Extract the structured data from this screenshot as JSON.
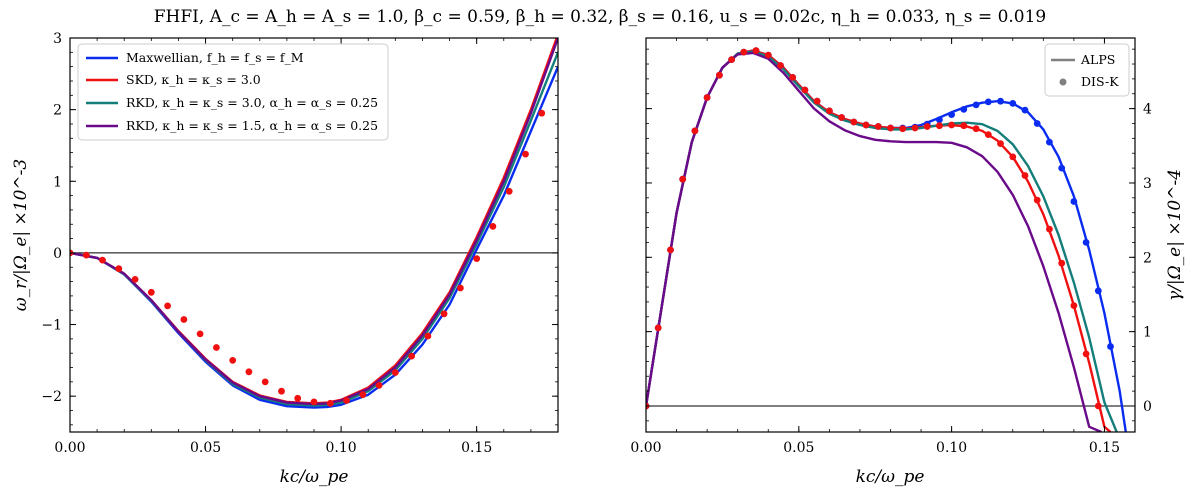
{
  "suptitle": "FHFI, A_c = A_h = A_s = 1.0, β_c = 0.59, β_h = 0.32, β_s = 0.16, u_s = 0.02c, η_h = 0.033, η_s = 0.019",
  "colors": {
    "maxwellian": "#0a2cf0",
    "skd": "#f01010",
    "rkd30": "#137e7a",
    "rkd15": "#6a0a8a"
  },
  "chart_data": [
    {
      "type": "line",
      "xlabel": "kc/ω_pe",
      "ylabel": "ω_r/|Ω_e| ×10^-3",
      "xlim": [
        0.0,
        0.18
      ],
      "ylim": [
        -2.5,
        3.0
      ],
      "x_ticks": [
        "0.00",
        "0.05",
        "0.10",
        "0.15"
      ],
      "y_ticks": [
        "−2",
        "−1",
        "0",
        "1",
        "2",
        "3"
      ],
      "zero_line": true,
      "legend_position": "top-left",
      "series": [
        {
          "name": "Maxwellian, f_h = f_s = f_M",
          "color_key": "maxwellian",
          "x": [
            0.0,
            0.01,
            0.02,
            0.03,
            0.04,
            0.05,
            0.06,
            0.07,
            0.08,
            0.09,
            0.095,
            0.1,
            0.11,
            0.12,
            0.13,
            0.14,
            0.15,
            0.16,
            0.17,
            0.18
          ],
          "y": [
            0.0,
            -0.07,
            -0.3,
            -0.68,
            -1.12,
            -1.52,
            -1.85,
            -2.05,
            -2.14,
            -2.16,
            -2.15,
            -2.12,
            -1.98,
            -1.7,
            -1.28,
            -0.72,
            0.05,
            0.8,
            1.7,
            2.6
          ]
        },
        {
          "name": "SKD, κ_h = κ_s = 3.0",
          "color_key": "skd",
          "x": [
            0.0,
            0.01,
            0.02,
            0.03,
            0.04,
            0.05,
            0.06,
            0.07,
            0.08,
            0.09,
            0.095,
            0.1,
            0.11,
            0.12,
            0.13,
            0.14,
            0.15,
            0.16,
            0.17,
            0.18
          ],
          "y": [
            0.0,
            -0.07,
            -0.29,
            -0.66,
            -1.09,
            -1.48,
            -1.8,
            -1.99,
            -2.08,
            -2.1,
            -2.09,
            -2.05,
            -1.88,
            -1.57,
            -1.12,
            -0.55,
            0.22,
            1.05,
            2.0,
            3.05
          ]
        },
        {
          "name": "RKD, κ_h = κ_s = 3.0, α_h = α_s = 0.25",
          "color_key": "rkd30",
          "x": [
            0.0,
            0.01,
            0.02,
            0.03,
            0.04,
            0.05,
            0.06,
            0.07,
            0.08,
            0.09,
            0.095,
            0.1,
            0.11,
            0.12,
            0.13,
            0.14,
            0.15,
            0.16,
            0.17,
            0.18
          ],
          "y": [
            0.0,
            -0.07,
            -0.3,
            -0.67,
            -1.1,
            -1.5,
            -1.83,
            -2.02,
            -2.11,
            -2.13,
            -2.12,
            -2.09,
            -1.93,
            -1.64,
            -1.2,
            -0.63,
            0.13,
            0.92,
            1.85,
            2.8
          ]
        },
        {
          "name": "RKD, κ_h = κ_s = 1.5, α_h = α_s = 0.25",
          "color_key": "rkd15",
          "x": [
            0.0,
            0.01,
            0.02,
            0.03,
            0.04,
            0.05,
            0.06,
            0.07,
            0.08,
            0.09,
            0.095,
            0.1,
            0.11,
            0.12,
            0.13,
            0.14,
            0.15,
            0.16,
            0.17,
            0.18
          ],
          "y": [
            0.0,
            -0.07,
            -0.29,
            -0.66,
            -1.1,
            -1.49,
            -1.81,
            -2.0,
            -2.09,
            -2.11,
            -2.1,
            -2.06,
            -1.9,
            -1.6,
            -1.15,
            -0.58,
            0.18,
            1.0,
            1.95,
            3.0
          ]
        }
      ],
      "markers": {
        "color_key": "skd",
        "x": [
          0.0,
          0.006,
          0.012,
          0.018,
          0.024,
          0.03,
          0.036,
          0.042,
          0.048,
          0.054,
          0.06,
          0.066,
          0.072,
          0.078,
          0.084,
          0.09,
          0.096,
          0.102,
          0.108,
          0.114,
          0.12,
          0.126,
          0.132,
          0.138,
          0.144,
          0.15,
          0.156,
          0.162,
          0.168,
          0.174
        ],
        "y": [
          0.0,
          -0.03,
          -0.1,
          -0.22,
          -0.37,
          -0.55,
          -0.74,
          -0.93,
          -1.13,
          -1.32,
          -1.5,
          -1.66,
          -1.8,
          -1.93,
          -2.03,
          -2.08,
          -2.1,
          -2.06,
          -1.98,
          -1.85,
          -1.67,
          -1.44,
          -1.16,
          -0.85,
          -0.49,
          -0.08,
          0.37,
          0.86,
          1.38,
          1.95
        ]
      }
    },
    {
      "type": "line",
      "xlabel": "kc/ω_pe",
      "ylabel": "γ/|Ω_e| ×10^-4",
      "xlim": [
        0.0,
        0.16
      ],
      "ylim": [
        -0.35,
        4.95
      ],
      "x_ticks": [
        "0.00",
        "0.05",
        "0.10",
        "0.15"
      ],
      "y_ticks": [
        "0",
        "1",
        "2",
        "3",
        "4"
      ],
      "zero_line": true,
      "legend_position": "top-right",
      "legend": [
        "ALPS",
        "DIS-K"
      ],
      "series": [
        {
          "name": "Maxwellian, f_h = f_s = f_M",
          "color_key": "maxwellian",
          "x": [
            0.0,
            0.005,
            0.01,
            0.015,
            0.02,
            0.025,
            0.03,
            0.035,
            0.04,
            0.045,
            0.05,
            0.055,
            0.06,
            0.065,
            0.07,
            0.075,
            0.08,
            0.085,
            0.09,
            0.095,
            0.1,
            0.105,
            0.11,
            0.115,
            0.12,
            0.125,
            0.13,
            0.135,
            0.14,
            0.145,
            0.15,
            0.155,
            0.157
          ],
          "y": [
            0.0,
            1.3,
            2.6,
            3.55,
            4.15,
            4.55,
            4.74,
            4.78,
            4.72,
            4.55,
            4.32,
            4.1,
            3.95,
            3.86,
            3.8,
            3.76,
            3.74,
            3.74,
            3.78,
            3.86,
            3.95,
            4.03,
            4.08,
            4.1,
            4.07,
            3.95,
            3.72,
            3.35,
            2.82,
            2.1,
            1.25,
            0.2,
            -0.35
          ]
        },
        {
          "name": "SKD, κ_h = κ_s = 3.0",
          "color_key": "skd",
          "x": [
            0.0,
            0.005,
            0.01,
            0.015,
            0.02,
            0.025,
            0.03,
            0.035,
            0.04,
            0.045,
            0.05,
            0.055,
            0.06,
            0.065,
            0.07,
            0.075,
            0.08,
            0.085,
            0.09,
            0.095,
            0.1,
            0.105,
            0.11,
            0.115,
            0.12,
            0.125,
            0.13,
            0.135,
            0.14,
            0.145,
            0.15,
            0.152
          ],
          "y": [
            0.0,
            1.3,
            2.6,
            3.55,
            4.15,
            4.55,
            4.74,
            4.78,
            4.72,
            4.55,
            4.32,
            4.1,
            3.95,
            3.86,
            3.8,
            3.76,
            3.74,
            3.73,
            3.75,
            3.77,
            3.78,
            3.76,
            3.7,
            3.57,
            3.35,
            3.02,
            2.58,
            2.02,
            1.35,
            0.58,
            -0.28,
            -0.35
          ]
        },
        {
          "name": "RKD, κ_h = κ_s = 3.0, α_h = α_s = 0.25",
          "color_key": "rkd30",
          "x": [
            0.0,
            0.005,
            0.01,
            0.015,
            0.02,
            0.025,
            0.03,
            0.035,
            0.04,
            0.045,
            0.05,
            0.055,
            0.06,
            0.065,
            0.07,
            0.075,
            0.08,
            0.085,
            0.09,
            0.095,
            0.1,
            0.105,
            0.11,
            0.115,
            0.12,
            0.125,
            0.13,
            0.135,
            0.14,
            0.145,
            0.15,
            0.154
          ],
          "y": [
            0.0,
            1.3,
            2.6,
            3.55,
            4.15,
            4.55,
            4.74,
            4.77,
            4.7,
            4.53,
            4.3,
            4.08,
            3.93,
            3.84,
            3.78,
            3.74,
            3.72,
            3.72,
            3.74,
            3.77,
            3.8,
            3.81,
            3.79,
            3.7,
            3.52,
            3.23,
            2.82,
            2.3,
            1.66,
            0.92,
            0.05,
            -0.35
          ]
        },
        {
          "name": "RKD, κ_h = κ_s = 1.5, α_h = α_s = 0.25",
          "color_key": "rkd15",
          "x": [
            0.0,
            0.005,
            0.01,
            0.015,
            0.02,
            0.025,
            0.03,
            0.035,
            0.04,
            0.045,
            0.05,
            0.055,
            0.06,
            0.065,
            0.07,
            0.075,
            0.08,
            0.085,
            0.09,
            0.095,
            0.1,
            0.105,
            0.11,
            0.115,
            0.12,
            0.125,
            0.13,
            0.135,
            0.14,
            0.145,
            0.149
          ],
          "y": [
            0.0,
            1.3,
            2.6,
            3.55,
            4.15,
            4.55,
            4.73,
            4.75,
            4.67,
            4.48,
            4.24,
            4.0,
            3.83,
            3.71,
            3.63,
            3.58,
            3.56,
            3.55,
            3.55,
            3.55,
            3.54,
            3.48,
            3.36,
            3.15,
            2.84,
            2.42,
            1.88,
            1.25,
            0.52,
            -0.28,
            -0.35
          ]
        }
      ],
      "markers": [
        {
          "color_key": "maxwellian",
          "x": [
            0.0,
            0.004,
            0.008,
            0.012,
            0.016,
            0.02,
            0.024,
            0.028,
            0.032,
            0.036,
            0.04,
            0.044,
            0.048,
            0.052,
            0.056,
            0.06,
            0.064,
            0.068,
            0.072,
            0.076,
            0.08,
            0.084,
            0.088,
            0.092,
            0.096,
            0.1,
            0.104,
            0.108,
            0.112,
            0.116,
            0.12,
            0.124,
            0.128,
            0.132,
            0.136,
            0.14,
            0.144,
            0.148,
            0.152
          ],
          "y": [
            0.0,
            1.05,
            2.1,
            3.05,
            3.7,
            4.15,
            4.45,
            4.66,
            4.76,
            4.78,
            4.72,
            4.58,
            4.42,
            4.25,
            4.1,
            3.97,
            3.88,
            3.82,
            3.78,
            3.76,
            3.74,
            3.74,
            3.75,
            3.79,
            3.85,
            3.92,
            3.99,
            4.05,
            4.09,
            4.1,
            4.07,
            3.98,
            3.8,
            3.55,
            3.2,
            2.75,
            2.2,
            1.55,
            0.8
          ]
        },
        {
          "color_key": "skd",
          "x": [
            0.0,
            0.004,
            0.008,
            0.012,
            0.016,
            0.02,
            0.024,
            0.028,
            0.032,
            0.036,
            0.04,
            0.044,
            0.048,
            0.052,
            0.056,
            0.06,
            0.064,
            0.068,
            0.072,
            0.076,
            0.08,
            0.084,
            0.088,
            0.092,
            0.096,
            0.1,
            0.104,
            0.108,
            0.112,
            0.116,
            0.12,
            0.124,
            0.128,
            0.132,
            0.136,
            0.14,
            0.144,
            0.148
          ],
          "y": [
            0.0,
            1.05,
            2.1,
            3.05,
            3.7,
            4.15,
            4.45,
            4.66,
            4.76,
            4.78,
            4.72,
            4.58,
            4.42,
            4.25,
            4.1,
            3.97,
            3.88,
            3.82,
            3.78,
            3.76,
            3.74,
            3.73,
            3.74,
            3.76,
            3.77,
            3.78,
            3.77,
            3.73,
            3.65,
            3.53,
            3.35,
            3.1,
            2.77,
            2.38,
            1.92,
            1.35,
            0.7,
            0.0
          ]
        }
      ]
    }
  ]
}
